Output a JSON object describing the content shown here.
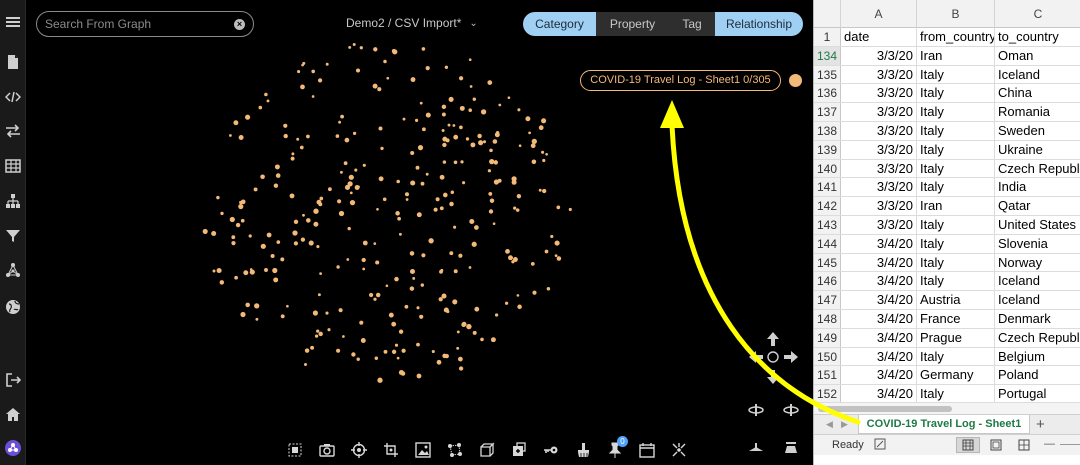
{
  "graph_app": {
    "search": {
      "placeholder": "Search From Graph"
    },
    "project_title": "Demo2 / CSV Import*",
    "view_tabs": [
      {
        "label": "Category",
        "active": true
      },
      {
        "label": "Property",
        "active": false
      },
      {
        "label": "Tag",
        "active": false
      },
      {
        "label": "Relationship",
        "active": true
      }
    ],
    "category_pill": {
      "label": "COVID-19 Travel Log - Sheet1 0/305",
      "color": "#f3b978"
    },
    "node_color": "#f3b978",
    "node_count_visible": 305,
    "sidebar_icons": [
      "menu-icon",
      "file-icon",
      "code-icon",
      "transfer-icon",
      "table-icon",
      "hierarchy-icon",
      "filter-icon",
      "network-icon",
      "globe-icon",
      "logout-icon",
      "home-icon",
      "logo-icon"
    ],
    "toolbar_icons": [
      "select-box-icon",
      "camera-icon",
      "target-icon",
      "crop-icon",
      "image-icon",
      "layout-icon",
      "cube-icon",
      "add-node-icon",
      "key-icon",
      "brush-icon",
      "pin-icon",
      "calendar-icon",
      "scatter-icon"
    ],
    "pin_badge": "0",
    "nav_icons": [
      "arrow-up-icon",
      "arrow-left-icon",
      "center-icon",
      "arrow-right-icon",
      "arrow-down-icon",
      "rotate-left-icon",
      "rotate-right-icon",
      "tilt-down-icon",
      "tilt-up-icon"
    ]
  },
  "spreadsheet": {
    "columns": [
      "A",
      "B",
      "C"
    ],
    "header_row": {
      "num": "1",
      "a": "date",
      "b": "from_country",
      "c": "to_country"
    },
    "rows": [
      {
        "num": "134",
        "a": "3/3/20",
        "b": "Iran",
        "c": "Oman"
      },
      {
        "num": "135",
        "a": "3/3/20",
        "b": "Italy",
        "c": "Iceland"
      },
      {
        "num": "136",
        "a": "3/3/20",
        "b": "Italy",
        "c": "China"
      },
      {
        "num": "137",
        "a": "3/3/20",
        "b": "Italy",
        "c": "Romania"
      },
      {
        "num": "138",
        "a": "3/3/20",
        "b": "Italy",
        "c": "Sweden"
      },
      {
        "num": "139",
        "a": "3/3/20",
        "b": "Italy",
        "c": "Ukraine"
      },
      {
        "num": "140",
        "a": "3/3/20",
        "b": "Italy",
        "c": "Czech Republic"
      },
      {
        "num": "141",
        "a": "3/3/20",
        "b": "Italy",
        "c": "India"
      },
      {
        "num": "142",
        "a": "3/3/20",
        "b": "Iran",
        "c": "Qatar"
      },
      {
        "num": "143",
        "a": "3/3/20",
        "b": "Italy",
        "c": "United States of"
      },
      {
        "num": "144",
        "a": "3/4/20",
        "b": "Italy",
        "c": "Slovenia"
      },
      {
        "num": "145",
        "a": "3/4/20",
        "b": "Italy",
        "c": "Norway"
      },
      {
        "num": "146",
        "a": "3/4/20",
        "b": "Italy",
        "c": "Iceland"
      },
      {
        "num": "147",
        "a": "3/4/20",
        "b": "Austria",
        "c": "Iceland"
      },
      {
        "num": "148",
        "a": "3/4/20",
        "b": "France",
        "c": "Denmark"
      },
      {
        "num": "149",
        "a": "3/4/20",
        "b": "Prague",
        "c": "Czech Republic"
      },
      {
        "num": "150",
        "a": "3/4/20",
        "b": "Italy",
        "c": "Belgium"
      },
      {
        "num": "151",
        "a": "3/4/20",
        "b": "Germany",
        "c": "Poland"
      },
      {
        "num": "152",
        "a": "3/4/20",
        "b": "Italy",
        "c": "Portugal"
      }
    ],
    "sheet_tab": "COVID-19 Travel Log - Sheet1",
    "add_sheet": "+",
    "status": "Ready"
  },
  "annotation": {
    "arrow_color": "#ffff00"
  }
}
